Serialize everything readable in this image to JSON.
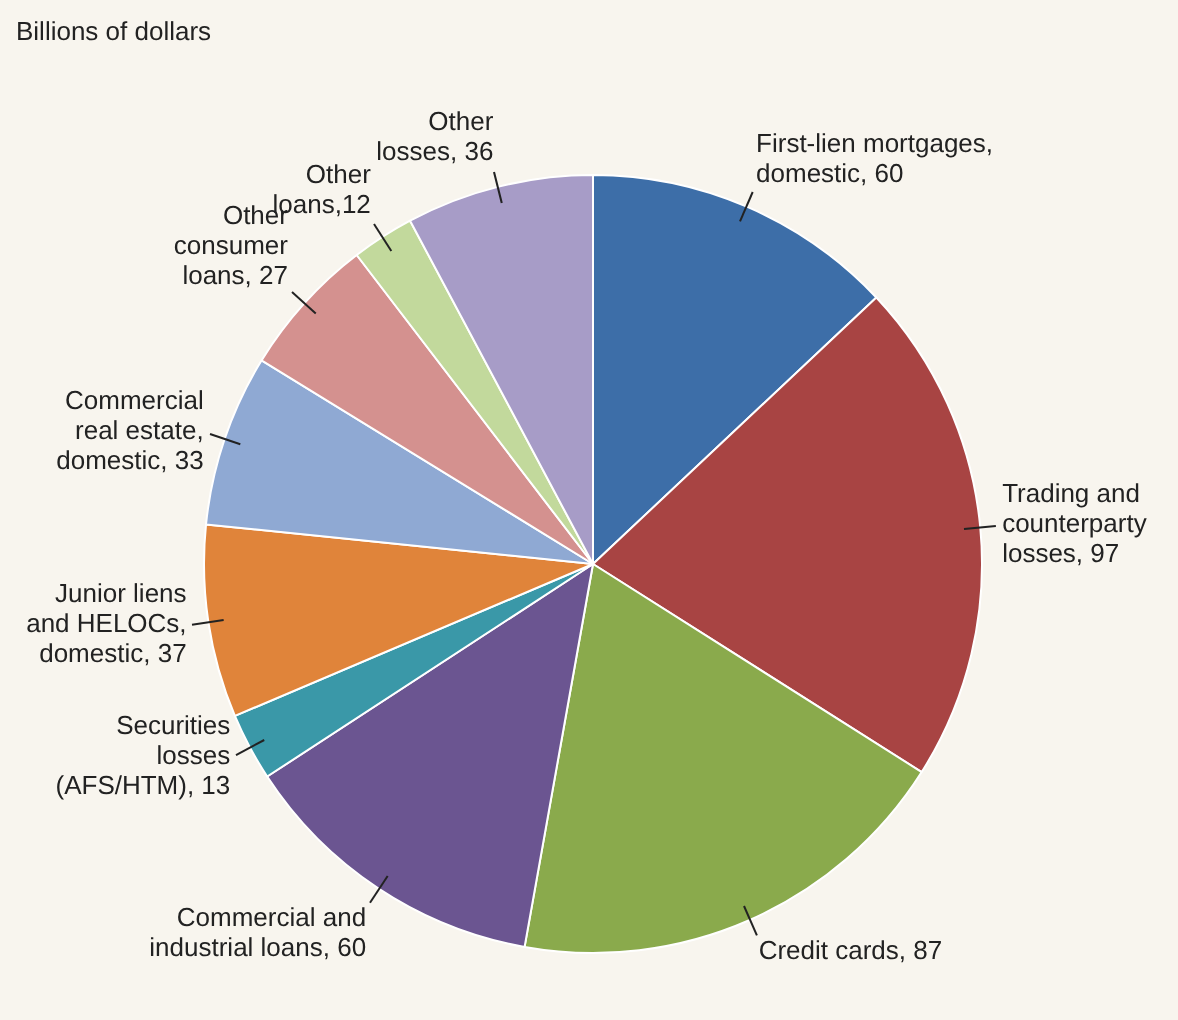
{
  "chart_data": {
    "type": "pie",
    "title": "Billions of dollars",
    "categories": [
      "First-lien mortgages,\ndomestic",
      "Trading and\ncounterparty\nlosses",
      "Credit cards",
      "Commercial and\nindustrial loans",
      "Securities\nlosses\n(AFS/HTM)",
      "Junior liens\nand HELOCs,\ndomestic",
      "Commercial\nreal estate,\ndomestic",
      "Other\nconsumer\nloans",
      "Other\nloans",
      "Other\nlosses"
    ],
    "values": [
      60,
      97,
      87,
      60,
      13,
      37,
      33,
      27,
      12,
      36
    ],
    "colors": [
      "#3d6ea8",
      "#a84443",
      "#8aaa4c",
      "#6b5591",
      "#3a98a8",
      "#e0843a",
      "#8fa9d3",
      "#d4918f",
      "#c2d99c",
      "#a79cc7"
    ],
    "value_labels": [
      ", 60",
      ", 97",
      ", 87",
      ", 60",
      ", 13",
      ", 37",
      ", 33",
      ", 27",
      ",12",
      ", 36"
    ],
    "legend": false
  }
}
